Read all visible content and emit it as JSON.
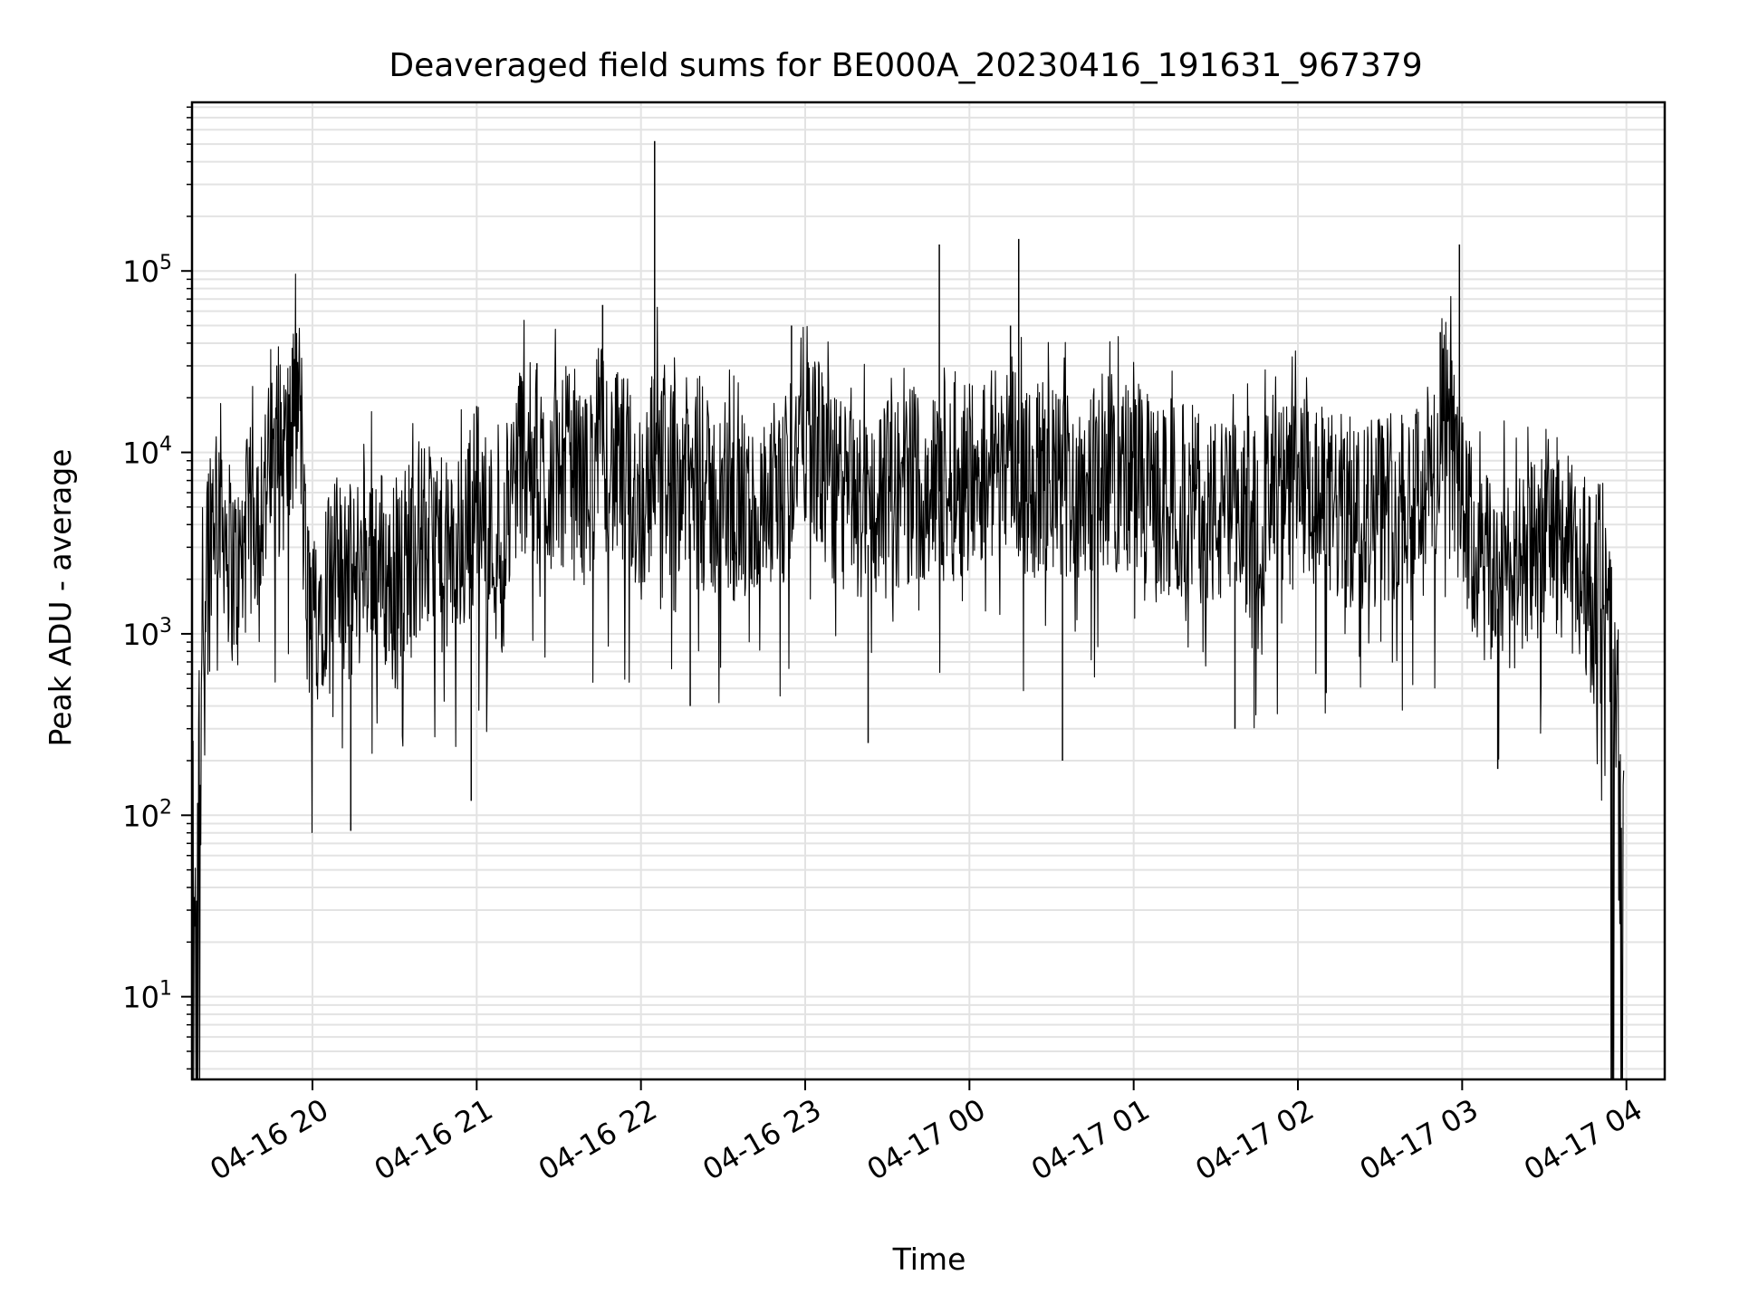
{
  "chart_data": {
    "type": "line",
    "title": "Deaveraged field sums for BE000A_20230416_191631_967379",
    "xlabel": "Time",
    "ylabel": "Peak ADU - average",
    "yscale": "log",
    "xlim": [
      "2023-04-16 19:16",
      "2023-04-17 04:14"
    ],
    "ylim": [
      3.5,
      850000
    ],
    "grid": true,
    "line_color": "#000000",
    "x_ticks": [
      {
        "t": "2023-04-16 20:00",
        "label": "04-16 20"
      },
      {
        "t": "2023-04-16 21:00",
        "label": "04-16 21"
      },
      {
        "t": "2023-04-16 22:00",
        "label": "04-16 22"
      },
      {
        "t": "2023-04-16 23:00",
        "label": "04-16 23"
      },
      {
        "t": "2023-04-17 00:00",
        "label": "04-17 00"
      },
      {
        "t": "2023-04-17 01:00",
        "label": "04-17 01"
      },
      {
        "t": "2023-04-17 02:00",
        "label": "04-17 02"
      },
      {
        "t": "2023-04-17 03:00",
        "label": "04-17 03"
      },
      {
        "t": "2023-04-17 04:00",
        "label": "04-17 04"
      }
    ],
    "y_ticks": [
      {
        "v": 10,
        "base": "10",
        "exp": "1"
      },
      {
        "v": 100,
        "base": "10",
        "exp": "2"
      },
      {
        "v": 1000,
        "base": "10",
        "exp": "3"
      },
      {
        "v": 10000,
        "base": "10",
        "exp": "4"
      },
      {
        "v": 100000,
        "base": "10",
        "exp": "5"
      }
    ],
    "series": [
      {
        "x": [
          "2023-04-16 19:16",
          "2023-04-16 19:18",
          "2023-04-16 19:19",
          "2023-04-16 19:20",
          "2023-04-16 19:21",
          "2023-04-16 19:22",
          "2023-04-16 19:24",
          "2023-04-16 19:26",
          "2023-04-16 19:28",
          "2023-04-16 19:30",
          "2023-04-16 19:33",
          "2023-04-16 19:36",
          "2023-04-16 19:40",
          "2023-04-16 19:44",
          "2023-04-16 19:48",
          "2023-04-16 19:52",
          "2023-04-16 19:55",
          "2023-04-16 19:56",
          "2023-04-16 19:57",
          "2023-04-16 19:58",
          "2023-04-16 20:00",
          "2023-04-16 20:05",
          "2023-04-16 20:10",
          "2023-04-16 20:15",
          "2023-04-16 20:20",
          "2023-04-16 20:25",
          "2023-04-16 20:30",
          "2023-04-16 20:35",
          "2023-04-16 20:40",
          "2023-04-16 20:45",
          "2023-04-16 20:50",
          "2023-04-16 20:55",
          "2023-04-16 21:00",
          "2023-04-16 21:05",
          "2023-04-16 21:10",
          "2023-04-16 21:15",
          "2023-04-16 21:20",
          "2023-04-16 21:25",
          "2023-04-16 21:30",
          "2023-04-16 21:35",
          "2023-04-16 21:40",
          "2023-04-16 21:45",
          "2023-04-16 21:50",
          "2023-04-16 21:55",
          "2023-04-16 22:00",
          "2023-04-16 22:05",
          "2023-04-16 22:06",
          "2023-04-16 22:10",
          "2023-04-16 22:15",
          "2023-04-16 22:20",
          "2023-04-16 22:30",
          "2023-04-16 22:40",
          "2023-04-16 22:50",
          "2023-04-16 22:55",
          "2023-04-16 23:00",
          "2023-04-16 23:10",
          "2023-04-16 23:20",
          "2023-04-16 23:30",
          "2023-04-16 23:40",
          "2023-04-16 23:50",
          "2023-04-16 23:55",
          "2023-04-17 00:00",
          "2023-04-17 00:10",
          "2023-04-17 00:15",
          "2023-04-17 00:20",
          "2023-04-17 00:30",
          "2023-04-17 00:40",
          "2023-04-17 00:50",
          "2023-04-17 01:00",
          "2023-04-17 01:10",
          "2023-04-17 01:20",
          "2023-04-17 01:30",
          "2023-04-17 01:40",
          "2023-04-17 01:50",
          "2023-04-17 02:00",
          "2023-04-17 02:10",
          "2023-04-17 02:20",
          "2023-04-17 02:30",
          "2023-04-17 02:40",
          "2023-04-17 02:50",
          "2023-04-17 02:55",
          "2023-04-17 03:00",
          "2023-04-17 03:05",
          "2023-04-17 03:10",
          "2023-04-17 03:15",
          "2023-04-17 03:20",
          "2023-04-17 03:25",
          "2023-04-17 03:30",
          "2023-04-17 03:35",
          "2023-04-17 03:40",
          "2023-04-17 03:45",
          "2023-04-17 03:50",
          "2023-04-17 03:53",
          "2023-04-17 03:55",
          "2023-04-17 03:57",
          "2023-04-17 03:59"
        ],
        "y": [
          100,
          150,
          400,
          1500,
          2500,
          3500,
          5500,
          6000,
          4000,
          2500,
          2000,
          3500,
          5000,
          7000,
          9000,
          11000,
          20000,
          12000,
          3000,
          1500,
          1200,
          2000,
          2200,
          1800,
          3000,
          2500,
          1500,
          3000,
          3500,
          2800,
          2500,
          3000,
          6000,
          3500,
          2500,
          10000,
          9000,
          7000,
          8000,
          9000,
          6000,
          12000,
          8000,
          7500,
          5000,
          9000,
          20000,
          7000,
          8000,
          6000,
          5000,
          4500,
          4000,
          9000,
          15000,
          6000,
          5000,
          5500,
          7000,
          6000,
          7000,
          8000,
          9000,
          12000,
          7000,
          6500,
          7000,
          8000,
          7000,
          5000,
          5500,
          4500,
          4000,
          5000,
          6000,
          5000,
          4500,
          5000,
          6000,
          7500,
          14000,
          5000,
          2500,
          2000,
          2500,
          2000,
          2500,
          4000,
          3500,
          2500,
          2000,
          1200,
          700,
          400,
          150,
          100
        ]
      }
    ],
    "spikes": [
      {
        "x": "2023-04-16 22:05",
        "y": 520000
      },
      {
        "x": "2023-04-16 21:46",
        "y": 65000
      },
      {
        "x": "2023-04-16 23:49",
        "y": 140000
      },
      {
        "x": "2023-04-17 00:18",
        "y": 150000
      },
      {
        "x": "2023-04-17 00:15",
        "y": 50000
      },
      {
        "x": "2023-04-16 22:55",
        "y": 50000
      },
      {
        "x": "2023-04-17 02:59",
        "y": 140000
      },
      {
        "x": "2023-04-17 02:52",
        "y": 46000
      },
      {
        "x": "2023-04-16 21:00",
        "y": 18000
      },
      {
        "x": "2023-04-16 21:22",
        "y": 31000
      }
    ],
    "dips": [
      {
        "x": "2023-04-16 20:14",
        "y": 82
      },
      {
        "x": "2023-04-16 20:58",
        "y": 120
      },
      {
        "x": "2023-04-16 23:23",
        "y": 250
      },
      {
        "x": "2023-04-17 00:34",
        "y": 200
      },
      {
        "x": "2023-04-16 22:18",
        "y": 400
      },
      {
        "x": "2023-04-17 03:13",
        "y": 180
      },
      {
        "x": "2023-04-17 01:37",
        "y": 300
      }
    ]
  }
}
